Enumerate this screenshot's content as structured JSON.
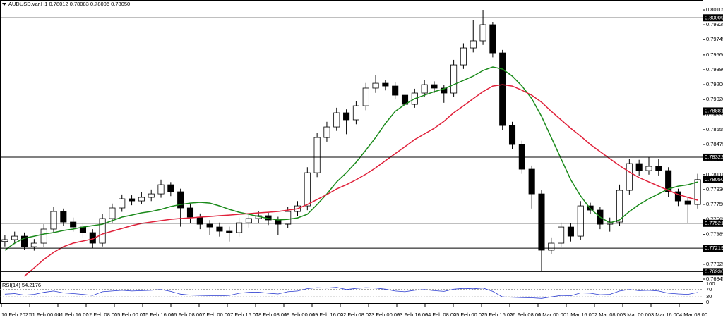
{
  "chart_data": {
    "type": "candlestick",
    "title": "AUDUSD.var,H1  0.78012 0.78083 0.78006 0.78050",
    "x_labels": [
      "10 Feb 2021",
      "11 Feb 00:00",
      "11 Feb 16:00",
      "12 Feb 08:00",
      "15 Feb 00:00",
      "15 Feb 16:00",
      "16 Feb 08:00",
      "17 Feb 00:00",
      "17 Feb 16:00",
      "18 Feb 08:00",
      "19 Feb 00:00",
      "19 Feb 16:00",
      "22 Feb 08:00",
      "23 Feb 00:00",
      "23 Feb 16:00",
      "24 Feb 08:00",
      "25 Feb 00:00",
      "25 Feb 16:00",
      "26 Feb 08:00",
      "1 Mar 00:00",
      "1 Mar 16:00",
      "2 Mar 08:00",
      "3 Mar 00:00",
      "3 Mar 16:00",
      "4 Mar 08:00"
    ],
    "open": [
      0.773,
      0.77323,
      0.77365,
      0.77237,
      0.7728,
      0.77451,
      0.77664,
      0.77536,
      0.77476,
      0.77408,
      0.7728,
      0.77579,
      0.77707,
      0.77818,
      0.77792,
      0.77835,
      0.77877,
      0.77988,
      0.77903,
      0.77707,
      0.77596,
      0.7751,
      0.77476,
      0.77425,
      0.77408,
      0.77527,
      0.77579,
      0.77613,
      0.77562,
      0.7751,
      0.77664,
      0.77732,
      0.78133,
      0.7856,
      0.78688,
      0.78859,
      0.78774,
      0.78944,
      0.79158,
      0.79217,
      0.79183,
      0.79072,
      0.78961,
      0.79098,
      0.792,
      0.79158,
      0.79098,
      0.79439,
      0.79644,
      0.7973,
      0.79926,
      0.79584,
      0.78705,
      0.78475,
      0.78176,
      0.77877,
      0.77195,
      0.7728,
      0.77476,
      0.77365,
      0.77732,
      0.77681,
      0.7751,
      0.77536,
      0.7792,
      0.78244,
      0.78159,
      0.7821,
      0.78159,
      0.77903,
      0.77792,
      0.77749
    ],
    "high": [
      0.7738,
      0.7742,
      0.7741,
      0.7733,
      0.7751,
      0.7772,
      0.777,
      0.7759,
      0.7752,
      0.7745,
      0.7763,
      0.7776,
      0.7787,
      0.7786,
      0.779,
      0.7793,
      0.7805,
      0.7802,
      0.7794,
      0.7776,
      0.7764,
      0.7756,
      0.7753,
      0.7748,
      0.7759,
      0.7763,
      0.7767,
      0.7765,
      0.776,
      0.7772,
      0.7779,
      0.782,
      0.7862,
      0.7875,
      0.7892,
      0.789,
      0.79,
      0.7922,
      0.7932,
      0.7926,
      0.7923,
      0.7911,
      0.7915,
      0.7926,
      0.7924,
      0.792,
      0.795,
      0.797,
      0.7998,
      0.80105,
      0.7996,
      0.7962,
      0.7875,
      0.7852,
      0.7822,
      0.7792,
      0.7735,
      0.7753,
      0.7752,
      0.7779,
      0.7777,
      0.7772,
      0.7759,
      0.7799,
      0.783,
      0.7829,
      0.78322,
      0.783,
      0.782,
      0.7794,
      0.7783,
      0.7812
    ],
    "low": [
      0.7724,
      0.7727,
      0.772,
      0.7719,
      0.7723,
      0.774,
      0.7749,
      0.7742,
      0.7735,
      0.77219,
      0.7724,
      0.7753,
      0.7766,
      0.7774,
      0.7775,
      0.7779,
      0.7783,
      0.7785,
      0.7748,
      0.7752,
      0.7745,
      0.7738,
      0.7736,
      0.773,
      0.7736,
      0.7747,
      0.7752,
      0.775,
      0.7738,
      0.7746,
      0.7761,
      0.7768,
      0.7808,
      0.7851,
      0.7864,
      0.786,
      0.7872,
      0.7889,
      0.791,
      0.7913,
      0.7902,
      0.7888,
      0.7892,
      0.7905,
      0.791,
      0.7898,
      0.7905,
      0.7939,
      0.7959,
      0.7968,
      0.7953,
      0.7865,
      0.7842,
      0.7812,
      0.777,
      0.76936,
      0.7715,
      0.7723,
      0.773,
      0.7732,
      0.7763,
      0.7745,
      0.7742,
      0.7749,
      0.7787,
      0.781,
      0.7811,
      0.781,
      0.7784,
      0.7773,
      0.77521,
      0.777
    ],
    "close": [
      0.77323,
      0.77365,
      0.77237,
      0.7728,
      0.77451,
      0.77664,
      0.77536,
      0.77476,
      0.77408,
      0.7728,
      0.77579,
      0.77707,
      0.77818,
      0.77792,
      0.77835,
      0.77877,
      0.77988,
      0.77903,
      0.77707,
      0.77596,
      0.7751,
      0.77476,
      0.77425,
      0.77408,
      0.77527,
      0.77579,
      0.77613,
      0.77562,
      0.7751,
      0.77664,
      0.77732,
      0.78133,
      0.7856,
      0.78688,
      0.78859,
      0.78774,
      0.78944,
      0.79158,
      0.79217,
      0.79183,
      0.79072,
      0.78961,
      0.79098,
      0.792,
      0.79158,
      0.79098,
      0.79439,
      0.79644,
      0.7973,
      0.79926,
      0.79584,
      0.78705,
      0.78475,
      0.78176,
      0.77877,
      0.77195,
      0.7728,
      0.77476,
      0.77365,
      0.77732,
      0.77681,
      0.7751,
      0.77536,
      0.7792,
      0.78244,
      0.78159,
      0.7821,
      0.78159,
      0.77903,
      0.77792,
      0.77749,
      0.7805
    ],
    "moving_averages": [
      {
        "color": "#1a8a1a",
        "values": [
          0.77195,
          0.7728,
          0.7734,
          0.77365,
          0.77391,
          0.77408,
          0.77434,
          0.77451,
          0.77476,
          0.77493,
          0.7751,
          0.77553,
          0.77596,
          0.77621,
          0.77647,
          0.77664,
          0.7769,
          0.77724,
          0.77749,
          0.77766,
          0.77775,
          0.77766,
          0.77732,
          0.7769,
          0.77655,
          0.7763,
          0.77604,
          0.77579,
          0.77562,
          0.7757,
          0.77587,
          0.7763,
          0.77749,
          0.77877,
          0.78022,
          0.78133,
          0.78261,
          0.78407,
          0.7856,
          0.78731,
          0.78876,
          0.78961,
          0.7903,
          0.79072,
          0.79115,
          0.79149,
          0.792,
          0.79251,
          0.79303,
          0.79371,
          0.79414,
          0.79388,
          0.79303,
          0.79183,
          0.7903,
          0.78816,
          0.7856,
          0.78304,
          0.78048,
          0.77852,
          0.77698,
          0.77596,
          0.77527,
          0.77562,
          0.77664,
          0.77749,
          0.77818,
          0.77877,
          0.77937,
          0.77971,
          0.77988,
          0.78022
        ]
      },
      {
        "color": "#e0213a",
        "values": [
          null,
          null,
          0.76879,
          0.76981,
          0.77084,
          0.77169,
          0.77237,
          0.7728,
          0.77306,
          0.77331,
          0.77391,
          0.77425,
          0.77459,
          0.77493,
          0.77519,
          0.77536,
          0.77553,
          0.7757,
          0.77579,
          0.77587,
          0.77596,
          0.77604,
          0.77613,
          0.77621,
          0.7763,
          0.77638,
          0.77647,
          0.77655,
          0.77664,
          0.77681,
          0.77698,
          0.77749,
          0.77809,
          0.77869,
          0.77937,
          0.77988,
          0.78048,
          0.78116,
          0.78193,
          0.78279,
          0.78364,
          0.78449,
          0.78535,
          0.78603,
          0.78671,
          0.78756,
          0.78859,
          0.78944,
          0.7903,
          0.79115,
          0.79183,
          0.792,
          0.79183,
          0.79132,
          0.79072,
          0.78987,
          0.78876,
          0.78774,
          0.78671,
          0.78577,
          0.78475,
          0.78389,
          0.78304,
          0.78219,
          0.78142,
          0.78074,
          0.78022,
          0.77971,
          0.7792,
          0.77869,
          0.77835,
          0.77801
        ]
      }
    ],
    "levels": [
      0.80009,
      0.78881,
      0.78322,
      0.77521,
      0.77219,
      0.76936
    ],
    "current_price": {
      "value": 0.7805,
      "label": "0.78050"
    },
    "ylim": [
      0.76828,
      0.80182
    ],
    "yticks": [
      0.80105,
      0.79925,
      0.79745,
      {
        "value": 0.7956,
        "label": "0.79560"
      },
      {
        "value": 0.7938,
        "label": "0.79380"
      },
      {
        "value": 0.792,
        "label": "0.79200"
      },
      {
        "value": 0.7902,
        "label": "0.79020"
      },
      0.78835,
      0.78655,
      0.78475,
      0.78295,
      {
        "value": 0.7811,
        "label": "0.78110"
      },
      {
        "value": 0.7793,
        "label": "0.77930"
      },
      {
        "value": 0.7775,
        "label": "0.77750"
      },
      0.77565,
      0.77385,
      0.77205,
      0.77025,
      0.76845
    ],
    "rsi": {
      "title": "RSI(14) 54.2176",
      "color": "#2a3bd0",
      "values": [
        45,
        48,
        40,
        44,
        55,
        62,
        52,
        48,
        44,
        38,
        58,
        62,
        66,
        62,
        64,
        66,
        70,
        60,
        45,
        40,
        38,
        37,
        36,
        38,
        50,
        55,
        56,
        50,
        46,
        58,
        62,
        75,
        80,
        78,
        82,
        70,
        76,
        80,
        78,
        72,
        62,
        58,
        66,
        70,
        64,
        60,
        72,
        76,
        74,
        78,
        60,
        30,
        28,
        26,
        25,
        22,
        30,
        38,
        36,
        52,
        50,
        42,
        44,
        62,
        70,
        64,
        66,
        62,
        50,
        46,
        44,
        54.2176
      ],
      "ylim": [
        0,
        100
      ],
      "yticks": [
        100,
        70,
        30,
        0
      ],
      "levels": [
        70,
        30
      ]
    }
  }
}
